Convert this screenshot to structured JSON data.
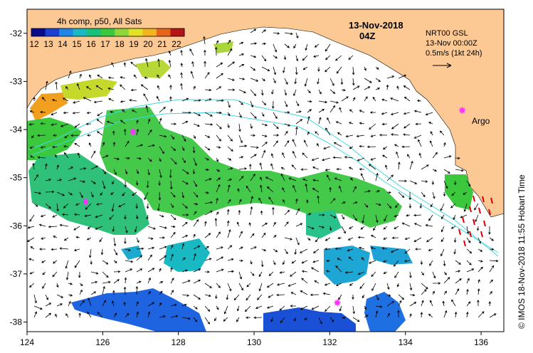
{
  "colorbar": {
    "title": "4h comp, p50, All Sats",
    "ticks": [
      "12",
      "13",
      "14",
      "15",
      "16",
      "17",
      "18",
      "19",
      "20",
      "21",
      "22"
    ],
    "colors": [
      "#0a0a8c",
      "#1a3fd1",
      "#1e86e6",
      "#19b9c4",
      "#19c07a",
      "#3cc83c",
      "#8fd638",
      "#e3e324",
      "#f4b41e",
      "#e8641a",
      "#b41414"
    ]
  },
  "header": {
    "date": "13-Nov-2018",
    "time": "04Z"
  },
  "vector_legend": {
    "line1": "NRT00 GSL",
    "line2": "13-Nov 00:00Z",
    "line3": "0.5m/s (1kt 24h)"
  },
  "argo_label": "Argo",
  "credit": "© IMOS 18-Nov-2018 11:55 Hobart Time",
  "axes": {
    "x_ticks": [
      "124",
      "126",
      "128",
      "130",
      "132",
      "134",
      "136"
    ],
    "y_ticks": [
      "-32",
      "-33",
      "-34",
      "-35",
      "-36",
      "-37",
      "-38"
    ]
  },
  "argo_floats": [
    {
      "lon": 125.55,
      "lat": -35.5
    },
    {
      "lon": 126.8,
      "lat": -34.05
    },
    {
      "lon": 132.2,
      "lat": -37.6
    },
    {
      "lon": 135.5,
      "lat": -33.6
    }
  ],
  "colors": {
    "land": "#fcc994",
    "vector": "#000000",
    "bathymetry": "#3fd8e0",
    "argo": "#ff33ff",
    "shelf_arrows": "#dd0000"
  }
}
